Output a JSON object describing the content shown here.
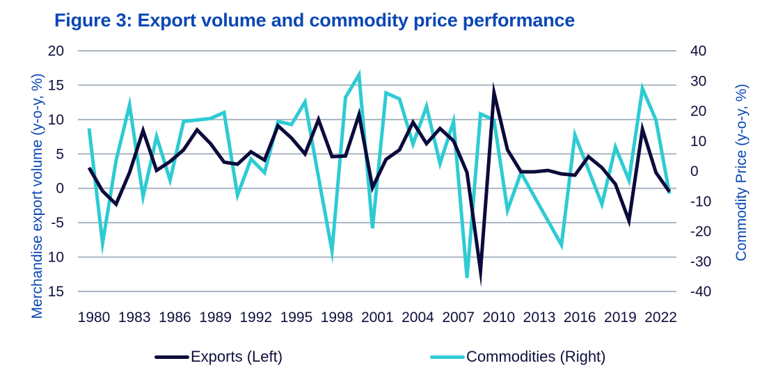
{
  "title": "Figure 3: Export volume and commodity price performance",
  "colors": {
    "title": "#0a47b5",
    "exports": "#0b0b3b",
    "commodities": "#2ecbd3",
    "grid": "#aab4c0",
    "tick_text": "#0f0f3c",
    "axis_title": "#0a47b5"
  },
  "legend": [
    {
      "name": "Exports (Left)",
      "color": "#0b0b3b"
    },
    {
      "name": "Commodities (Right)",
      "color": "#2ecbd3"
    }
  ],
  "chart_data": {
    "type": "line",
    "title": "Figure 3: Export volume and commodity price performance",
    "xlabel": "",
    "ylabel": "Merchandise export volume (y-o-y, %)",
    "y2label": "Commodity Price (y-o-y, %)",
    "ylim": [
      -15,
      20
    ],
    "y2lim": [
      -40,
      40
    ],
    "yticks": [
      "20",
      "15",
      "10",
      "5",
      "0",
      "-5",
      "-10",
      "-15"
    ],
    "yticks_display": [
      "20",
      "15",
      "10",
      "5",
      "0",
      "-5",
      "10",
      "15"
    ],
    "y2ticks": [
      "40",
      "30",
      "20",
      "10",
      "0",
      "-10",
      "-20",
      "-30",
      "-40"
    ],
    "grid": true,
    "legend_position": "bottom",
    "x": [
      1980,
      1981,
      1982,
      1983,
      1984,
      1985,
      1986,
      1987,
      1988,
      1989,
      1990,
      1991,
      1992,
      1993,
      1994,
      1995,
      1996,
      1997,
      1998,
      1999,
      2000,
      2001,
      2002,
      2003,
      2004,
      2005,
      2006,
      2007,
      2008,
      2009,
      2010,
      2011,
      2012,
      2013,
      2014,
      2015,
      2016,
      2017,
      2018,
      2019,
      2020,
      2021,
      2022,
      2023
    ],
    "xtick_labels": [
      "1980",
      "1983",
      "1986",
      "1989",
      "1992",
      "1995",
      "1998",
      "2001",
      "2004",
      "2007",
      "2010",
      "2013",
      "2016",
      "2019",
      "2022"
    ],
    "series": [
      {
        "name": "Exports (Left)",
        "axis": "left",
        "values": [
          3.0,
          -0.4,
          -2.3,
          2.3,
          8.4,
          2.6,
          3.9,
          5.6,
          8.5,
          6.5,
          3.8,
          3.5,
          5.3,
          4.1,
          9.1,
          7.3,
          5.0,
          10.0,
          4.6,
          4.7,
          10.7,
          0.1,
          4.2,
          5.6,
          9.6,
          6.5,
          8.7,
          6.9,
          2.3,
          -12.0,
          13.9,
          5.6,
          2.4,
          2.4,
          2.6,
          2.1,
          1.9,
          4.6,
          3.0,
          0.6,
          -4.7,
          8.6,
          2.3,
          -0.5
        ]
      },
      {
        "name": "Commodities (Right)",
        "axis": "right",
        "values": [
          14.2,
          -24.0,
          3.5,
          22.0,
          -8.5,
          11.5,
          -3.0,
          16.5,
          17.0,
          17.5,
          19.5,
          -8.0,
          4.0,
          -0.5,
          16.5,
          15.5,
          23.0,
          -2.0,
          -26.5,
          24.5,
          32.0,
          -19.0,
          26.0,
          24.0,
          9.0,
          21.5,
          2.5,
          16.5,
          -35.5,
          19.0,
          17.0,
          -13.0,
          -0.5,
          -8.5,
          -16.5,
          -24.5,
          12.0,
          0.5,
          -11.0,
          8.0,
          -3.0,
          27.5,
          17.0,
          -7.5
        ]
      }
    ]
  }
}
